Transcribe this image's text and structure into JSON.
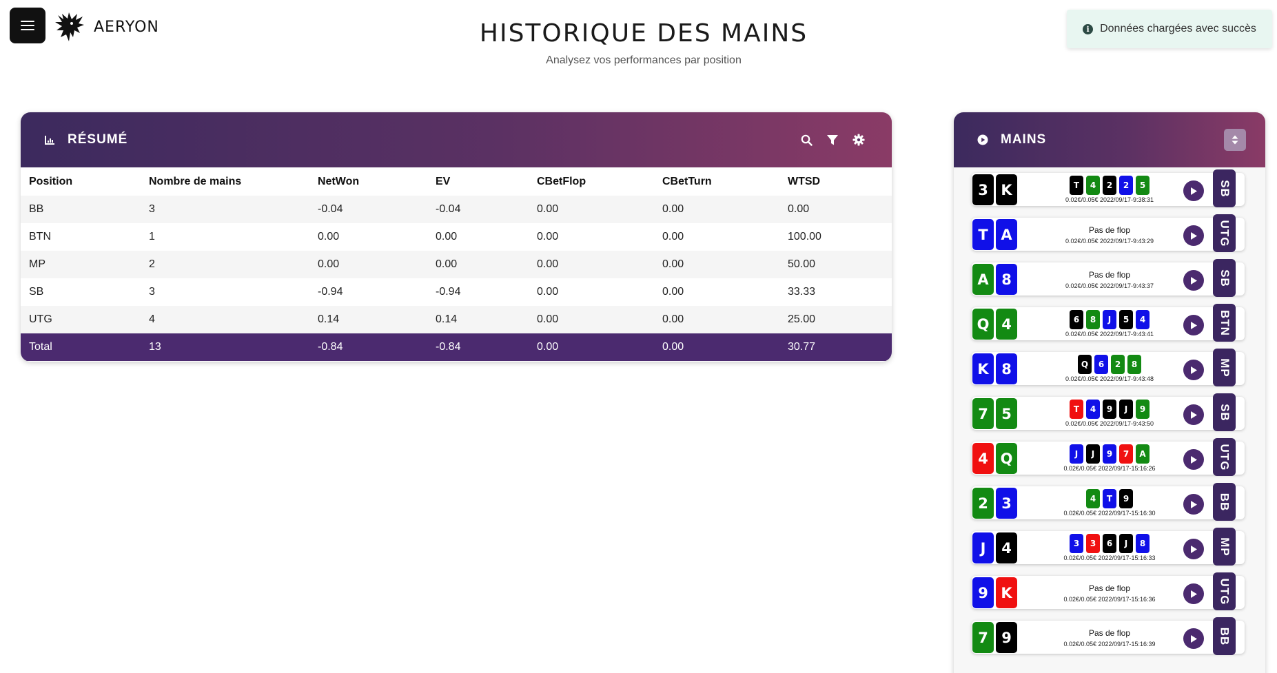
{
  "brand": {
    "name": "AERYON"
  },
  "page": {
    "title": "HISTORIQUE DES MAINS",
    "subtitle": "Analysez vos performances par position"
  },
  "toast": {
    "message": "Données chargées avec succès",
    "icon": "info-icon"
  },
  "colors": {
    "header_gradient_start": "#3c2a5e",
    "header_gradient_end": "#8a3b66",
    "total_row": "#4b2a6f",
    "card_black": "#000000",
    "card_green": "#138a13",
    "card_blue": "#1010e8",
    "card_red": "#f01010"
  },
  "summary": {
    "title": "RÉSUMÉ",
    "icons": [
      "chart-icon",
      "search-icon",
      "filter-icon",
      "gear-icon"
    ],
    "columns": [
      "Position",
      "Nombre de mains",
      "NetWon",
      "EV",
      "CBetFlop",
      "CBetTurn",
      "WTSD"
    ],
    "rows": [
      [
        "BB",
        "3",
        "-0.04",
        "-0.04",
        "0.00",
        "0.00",
        "0.00"
      ],
      [
        "BTN",
        "1",
        "0.00",
        "0.00",
        "0.00",
        "0.00",
        "100.00"
      ],
      [
        "MP",
        "2",
        "0.00",
        "0.00",
        "0.00",
        "0.00",
        "50.00"
      ],
      [
        "SB",
        "3",
        "-0.94",
        "-0.94",
        "0.00",
        "0.00",
        "33.33"
      ],
      [
        "UTG",
        "4",
        "0.14",
        "0.14",
        "0.00",
        "0.00",
        "25.00"
      ]
    ],
    "total": [
      "Total",
      "13",
      "-0.84",
      "-0.84",
      "0.00",
      "0.00",
      "30.77"
    ]
  },
  "hands": {
    "title": "MAINS",
    "no_flop_label": "Pas de flop",
    "items": [
      {
        "hole": [
          [
            "3",
            "k"
          ],
          [
            "K",
            "k"
          ]
        ],
        "board": [
          [
            "T",
            "k"
          ],
          [
            "4",
            "g"
          ],
          [
            "2",
            "k"
          ],
          [
            "2",
            "b"
          ],
          [
            "5",
            "g"
          ]
        ],
        "stakes": "0.02€/0.05€",
        "time": "2022/09/17-9:38:31",
        "position": "SB"
      },
      {
        "hole": [
          [
            "T",
            "b"
          ],
          [
            "A",
            "b"
          ]
        ],
        "board": [],
        "stakes": "0.02€/0.05€",
        "time": "2022/09/17-9:43:29",
        "position": "UTG"
      },
      {
        "hole": [
          [
            "A",
            "g"
          ],
          [
            "8",
            "b"
          ]
        ],
        "board": [],
        "stakes": "0.02€/0.05€",
        "time": "2022/09/17-9:43:37",
        "position": "SB"
      },
      {
        "hole": [
          [
            "Q",
            "g"
          ],
          [
            "4",
            "g"
          ]
        ],
        "board": [
          [
            "6",
            "k"
          ],
          [
            "8",
            "g"
          ],
          [
            "J",
            "b"
          ],
          [
            "5",
            "k"
          ],
          [
            "4",
            "b"
          ]
        ],
        "stakes": "0.02€/0.05€",
        "time": "2022/09/17-9:43:41",
        "position": "BTN"
      },
      {
        "hole": [
          [
            "K",
            "b"
          ],
          [
            "8",
            "b"
          ]
        ],
        "board": [
          [
            "Q",
            "k"
          ],
          [
            "6",
            "b"
          ],
          [
            "2",
            "g"
          ],
          [
            "8",
            "g"
          ]
        ],
        "stakes": "0.02€/0.05€",
        "time": "2022/09/17-9:43:48",
        "position": "MP"
      },
      {
        "hole": [
          [
            "7",
            "g"
          ],
          [
            "5",
            "g"
          ]
        ],
        "board": [
          [
            "T",
            "r"
          ],
          [
            "4",
            "b"
          ],
          [
            "9",
            "k"
          ],
          [
            "J",
            "k"
          ],
          [
            "9",
            "g"
          ]
        ],
        "stakes": "0.02€/0.05€",
        "time": "2022/09/17-9:43:50",
        "position": "SB"
      },
      {
        "hole": [
          [
            "4",
            "r"
          ],
          [
            "Q",
            "g"
          ]
        ],
        "board": [
          [
            "J",
            "b"
          ],
          [
            "J",
            "k"
          ],
          [
            "9",
            "b"
          ],
          [
            "7",
            "r"
          ],
          [
            "A",
            "g"
          ]
        ],
        "stakes": "0.02€/0.05€",
        "time": "2022/09/17-15:16:26",
        "position": "UTG"
      },
      {
        "hole": [
          [
            "2",
            "g"
          ],
          [
            "3",
            "b"
          ]
        ],
        "board": [
          [
            "4",
            "g"
          ],
          [
            "T",
            "b"
          ],
          [
            "9",
            "k"
          ]
        ],
        "stakes": "0.02€/0.05€",
        "time": "2022/09/17-15:16:30",
        "position": "BB"
      },
      {
        "hole": [
          [
            "J",
            "b"
          ],
          [
            "4",
            "k"
          ]
        ],
        "board": [
          [
            "3",
            "b"
          ],
          [
            "3",
            "r"
          ],
          [
            "6",
            "k"
          ],
          [
            "J",
            "k"
          ],
          [
            "8",
            "b"
          ]
        ],
        "stakes": "0.02€/0.05€",
        "time": "2022/09/17-15:16:33",
        "position": "MP"
      },
      {
        "hole": [
          [
            "9",
            "b"
          ],
          [
            "K",
            "r"
          ]
        ],
        "board": [],
        "stakes": "0.02€/0.05€",
        "time": "2022/09/17-15:16:36",
        "position": "UTG"
      },
      {
        "hole": [
          [
            "7",
            "g"
          ],
          [
            "9",
            "k"
          ]
        ],
        "board": [],
        "stakes": "0.02€/0.05€",
        "time": "2022/09/17-15:16:39",
        "position": "BB"
      }
    ]
  }
}
